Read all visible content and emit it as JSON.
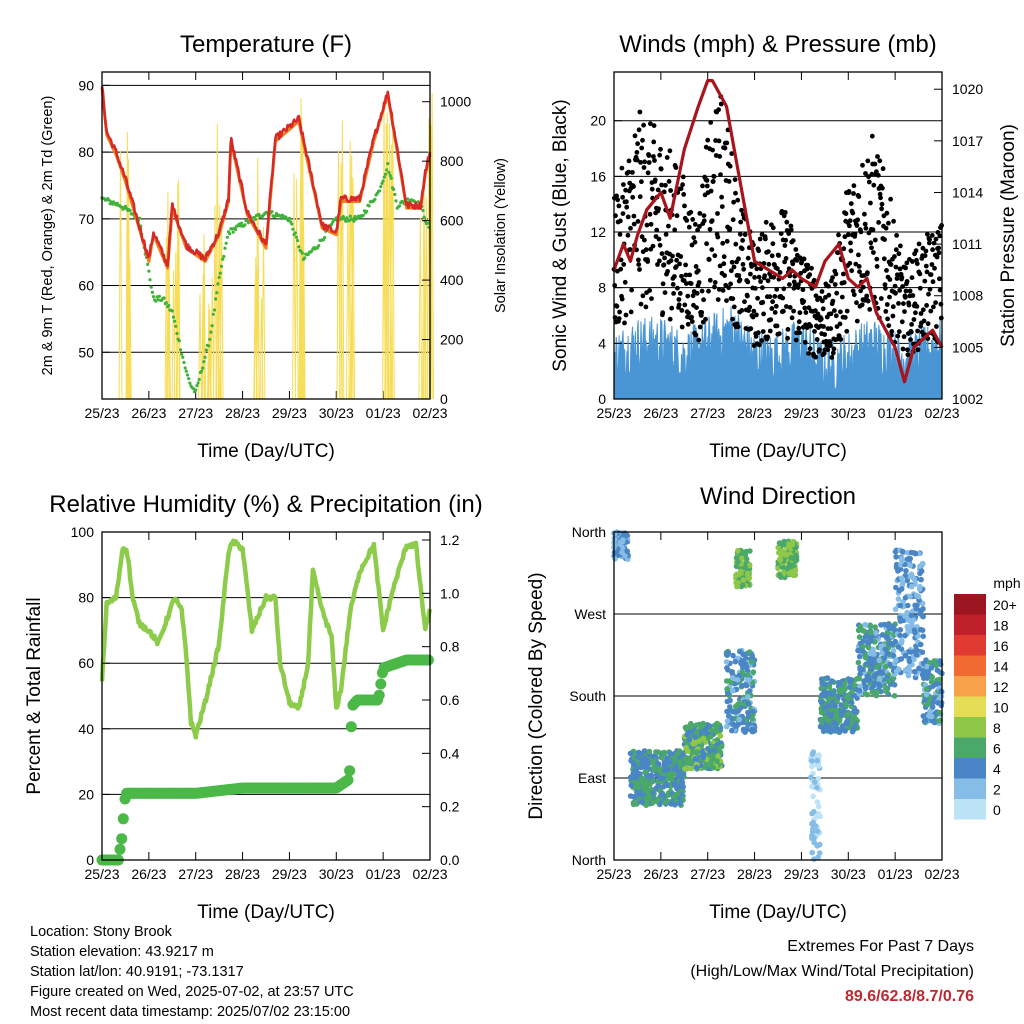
{
  "x_ticks": [
    "25/23",
    "26/23",
    "27/23",
    "28/23",
    "29/23",
    "30/23",
    "01/23",
    "02/23"
  ],
  "colors": {
    "temp2m": "#d62a28",
    "temp9m": "#f0801a",
    "dew": "#3fb23a",
    "solar": "#f7dc55",
    "gust": "#000000",
    "wind": "#4a96d4",
    "pressure": "#a8141c",
    "rh": "#8ccc4a",
    "precip": "#4bb848",
    "extremes": "#c0282f"
  },
  "chart_data": [
    {
      "type": "line",
      "title": "Temperature (F)",
      "xlabel": "Time (Day/UTC)",
      "ylabel": "2m & 9m T (Red, Orange) & 2m Td (Green)",
      "y2label": "Solar Insolation (Yellow)",
      "ylim": [
        43,
        92
      ],
      "y_ticks": [
        50,
        60,
        70,
        80,
        90
      ],
      "y2lim": [
        0,
        1100
      ],
      "y2_ticks": [
        0,
        200,
        400,
        600,
        800,
        1000
      ],
      "grid": true,
      "series": [
        {
          "name": "2m T",
          "axis": "left",
          "x": [
            0,
            0.1,
            0.3,
            0.5,
            1.0,
            1.1,
            1.4,
            1.5,
            1.8,
            2.2,
            2.5,
            2.7,
            2.75,
            3.1,
            3.5,
            3.7,
            4.2,
            4.7,
            5.0,
            5.1,
            5.5,
            5.8,
            6.1,
            6.5,
            6.8,
            6.9,
            7.0
          ],
          "values": [
            90,
            83,
            80,
            76,
            64,
            68,
            63,
            72,
            66,
            64,
            68,
            73,
            82,
            71,
            66,
            82,
            85,
            69,
            68,
            73,
            73,
            82,
            89,
            72,
            72,
            77,
            80
          ]
        },
        {
          "name": "2m Td",
          "axis": "left",
          "x": [
            0,
            0.4,
            0.8,
            1.1,
            1.3,
            1.5,
            1.8,
            1.9,
            2.0,
            2.3,
            2.5,
            2.7,
            3.5,
            4.0,
            4.3,
            4.6,
            5.0,
            5.5,
            5.9,
            6.1,
            6.3,
            6.6,
            6.8,
            7.0
          ],
          "values": [
            73,
            72,
            70,
            58,
            58,
            56,
            47,
            45,
            44,
            52,
            61,
            68,
            71,
            70,
            64,
            66,
            70,
            70,
            74,
            78,
            72,
            73,
            72,
            68
          ]
        },
        {
          "name": "Solar Insolation",
          "axis": "right",
          "type": "spikes",
          "peaks": [
            {
              "x": 0.5,
              "v": 900
            },
            {
              "x": 1.5,
              "v": 800
            },
            {
              "x": 2.2,
              "v": 600
            },
            {
              "x": 2.45,
              "v": 1020
            },
            {
              "x": 3.35,
              "v": 840
            },
            {
              "x": 4.25,
              "v": 1040
            },
            {
              "x": 5.2,
              "v": 1070
            },
            {
              "x": 6.15,
              "v": 1050
            },
            {
              "x": 6.95,
              "v": 1030
            }
          ]
        }
      ]
    },
    {
      "type": "scatter",
      "title": "Winds (mph) & Pressure (mb)",
      "xlabel": "Time (Day/UTC)",
      "ylabel": "Sonic Wind & Gust (Blue, Black)",
      "y2label": "Station Pressure (Maroon)",
      "ylim": [
        0,
        23.5
      ],
      "y_ticks": [
        0,
        4,
        8,
        12,
        16,
        20
      ],
      "y2lim": [
        1002,
        1021
      ],
      "y2_ticks": [
        1002,
        1005,
        1008,
        1011,
        1014,
        1017,
        1020
      ],
      "grid": true,
      "series": [
        {
          "name": "Gust",
          "axis": "left",
          "x": [
            0,
            0.5,
            1.0,
            1.5,
            1.8,
            2.0,
            2.3,
            2.7,
            3.0,
            3.5,
            3.8,
            4.2,
            4.6,
            5.0,
            5.5,
            5.8,
            6.2,
            6.5,
            7.0
          ],
          "values": [
            9,
            13,
            12,
            10,
            8,
            12,
            14,
            9,
            7,
            9,
            8,
            6,
            5,
            10,
            12,
            10,
            6,
            7,
            8
          ]
        },
        {
          "name": "Wind",
          "axis": "left",
          "x": [
            0,
            0.5,
            1.0,
            1.5,
            2.0,
            2.5,
            3.0,
            3.5,
            4.0,
            4.5,
            5.0,
            5.5,
            6.0,
            6.5,
            7.0
          ],
          "values": [
            3,
            4,
            4,
            3,
            4,
            5,
            3,
            3,
            4,
            2,
            3,
            4,
            3,
            3,
            4
          ]
        },
        {
          "name": "Station Pressure",
          "axis": "right",
          "x": [
            0,
            0.2,
            0.35,
            0.5,
            0.7,
            1.0,
            1.2,
            1.5,
            1.8,
            2.0,
            2.1,
            2.4,
            2.6,
            2.8,
            3.0,
            3.3,
            3.6,
            3.8,
            4.0,
            4.3,
            4.5,
            4.8,
            5.0,
            5.2,
            5.4,
            5.6,
            5.8,
            6.0,
            6.2,
            6.4,
            6.6,
            6.8,
            7.0
          ],
          "values": [
            1009.5,
            1011,
            1010,
            1011.5,
            1013,
            1014,
            1012.5,
            1016.5,
            1019,
            1020.5,
            1020.5,
            1019,
            1016,
            1013,
            1010,
            1009.5,
            1009,
            1009.5,
            1009,
            1008.5,
            1010,
            1011,
            1009,
            1008.5,
            1009,
            1007,
            1006,
            1005,
            1003,
            1005,
            1005.5,
            1006,
            1005
          ]
        }
      ]
    },
    {
      "type": "line",
      "title": "Relative Humidity (%) & Precipitation (in)",
      "xlabel": "Time (Day/UTC)",
      "ylabel": "Percent & Total Rainfall",
      "ylim": [
        0,
        100
      ],
      "y_ticks": [
        0,
        20,
        40,
        60,
        80,
        100
      ],
      "y2lim": [
        0,
        1.23
      ],
      "y2_ticks": [
        "0.0",
        "0.2",
        "0.4",
        "0.6",
        "0.8",
        "1.0",
        "1.2"
      ],
      "grid": true,
      "series": [
        {
          "name": "RH",
          "axis": "left",
          "x": [
            0,
            0.1,
            0.3,
            0.45,
            0.55,
            0.65,
            0.8,
            1.0,
            1.2,
            1.4,
            1.55,
            1.7,
            1.8,
            1.9,
            2.0,
            2.2,
            2.5,
            2.7,
            2.8,
            3.0,
            3.2,
            3.5,
            3.7,
            3.8,
            4.0,
            4.2,
            4.4,
            4.5,
            4.7,
            4.9,
            5.0,
            5.1,
            5.3,
            5.5,
            5.8,
            6.0,
            6.2,
            6.5,
            6.7,
            6.9,
            7.0
          ],
          "values": [
            55,
            78,
            80,
            96,
            93,
            80,
            72,
            70,
            66,
            74,
            80,
            76,
            62,
            42,
            38,
            48,
            66,
            94,
            97,
            95,
            70,
            80,
            80,
            60,
            48,
            46,
            60,
            88,
            76,
            68,
            46,
            52,
            76,
            88,
            96,
            70,
            82,
            96,
            96,
            70,
            76
          ]
        },
        {
          "name": "Total Precipitation",
          "axis": "right",
          "x": [
            0,
            0.35,
            0.42,
            0.5,
            0.6,
            1.0,
            2.0,
            2.5,
            3.0,
            4.0,
            5.0,
            5.25,
            5.3,
            5.32,
            5.35,
            5.45,
            5.7,
            5.9,
            6.0,
            6.5,
            7.0
          ],
          "values": [
            0,
            0,
            0.08,
            0.25,
            0.25,
            0.25,
            0.25,
            0.26,
            0.27,
            0.27,
            0.27,
            0.3,
            0.35,
            0.5,
            0.58,
            0.6,
            0.6,
            0.6,
            0.72,
            0.75,
            0.75
          ]
        }
      ]
    },
    {
      "type": "scatter",
      "title": "Wind Direction",
      "xlabel": "Time (Day/UTC)",
      "ylabel": "Direction (Colored By Speed)",
      "y_ticks": [
        "North",
        "East",
        "South",
        "West",
        "North"
      ],
      "grid": true,
      "clusters": [
        {
          "x": [
            0.0,
            0.3
          ],
          "dir": [
            330,
            360
          ],
          "speed": 3
        },
        {
          "x": [
            0.35,
            1.5
          ],
          "dir": [
            60,
            120
          ],
          "speed": 5
        },
        {
          "x": [
            1.5,
            2.3
          ],
          "dir": [
            100,
            150
          ],
          "speed": 6
        },
        {
          "x": [
            2.4,
            3.0
          ],
          "dir": [
            140,
            230
          ],
          "speed": 4
        },
        {
          "x": [
            2.6,
            2.9
          ],
          "dir": [
            300,
            340
          ],
          "speed": 7
        },
        {
          "x": [
            3.5,
            3.9
          ],
          "dir": [
            310,
            350
          ],
          "speed": 7
        },
        {
          "x": [
            4.2,
            4.4
          ],
          "dir": [
            0,
            120
          ],
          "speed": 1
        },
        {
          "x": [
            4.4,
            5.2
          ],
          "dir": [
            140,
            200
          ],
          "speed": 5
        },
        {
          "x": [
            5.2,
            6.0
          ],
          "dir": [
            180,
            260
          ],
          "speed": 4
        },
        {
          "x": [
            6.0,
            6.6
          ],
          "dir": [
            200,
            340
          ],
          "speed": 3
        },
        {
          "x": [
            6.6,
            7.0
          ],
          "dir": [
            150,
            220
          ],
          "speed": 4
        }
      ],
      "legend": {
        "title": "mph",
        "labels": [
          "20+",
          "18",
          "16",
          "14",
          "12",
          "10",
          "8",
          "6",
          "4",
          "2",
          "0"
        ],
        "colors": [
          "#9c1622",
          "#c0202a",
          "#e03a32",
          "#f06a32",
          "#f7a24a",
          "#e5dd55",
          "#8fc849",
          "#4aa86a",
          "#4a86c6",
          "#86bde7",
          "#bde3f7"
        ]
      }
    }
  ],
  "footer": {
    "location": "Location: Stony Brook",
    "elevation": "Station elevation: 43.9217 m",
    "latlon": "Station lat/lon: 40.9191; -73.1317",
    "created": "Figure created on Wed, 2025-07-02, at 23:57 UTC",
    "recent": "Most recent data timestamp: 2025/07/02 23:15:00"
  },
  "extremes": {
    "title": "Extremes For Past 7 Days",
    "subtitle": "(High/Low/Max Wind/Total Precipitation)",
    "values": "89.6/62.8/8.7/0.76"
  }
}
